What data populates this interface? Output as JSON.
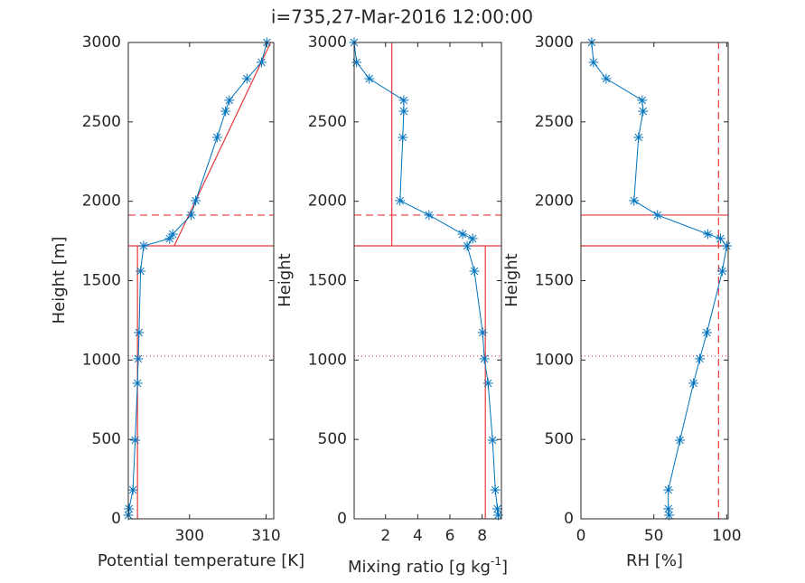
{
  "title": "i=735,27-Mar-2016 12:00:00",
  "chart_data": [
    {
      "type": "line",
      "xlabel": [
        "Potential temperature [K]"
      ],
      "ylabel": "Height [m]",
      "xlim": [
        292,
        311
      ],
      "ylim": [
        0,
        3000
      ],
      "xticks": [
        300,
        310
      ],
      "yticks": [
        0,
        500,
        1000,
        1500,
        2000,
        2500,
        3000
      ],
      "series": [
        {
          "color": "#0072bd",
          "x": [
            292.0,
            292.1,
            292.6,
            292.9,
            293.2,
            293.3,
            293.4,
            293.6,
            294.0,
            297.4,
            297.8,
            300.2,
            300.8,
            303.6,
            304.7,
            305.2,
            307.5,
            309.4,
            310.1
          ],
          "values": [
            23,
            63,
            182,
            495,
            854,
            1008,
            1173,
            1560,
            1719,
            1765,
            1793,
            1913,
            2004,
            2402,
            2567,
            2636,
            2772,
            2875,
            3000
          ]
        }
      ],
      "ref_lines": [
        {
          "y": 1719,
          "dash": "solid",
          "color": "#e8373a"
        },
        {
          "y": 1913,
          "dash": "dashed",
          "color": "#e8373a"
        },
        {
          "y": 1025,
          "dash": "dotted",
          "color": "#e8373a"
        },
        {
          "x": 293.2,
          "y": [
            0,
            1719
          ],
          "dash": "solid",
          "color": "#e8373a"
        },
        {
          "x": [
            298,
            310.6
          ],
          "y": [
            1719,
            3000
          ],
          "dash": "solid",
          "color": "#e8373a"
        }
      ]
    },
    {
      "type": "line",
      "xlabel": [
        "Mixing ratio [g kg",
        "-1",
        "]"
      ],
      "ylabel": "Height",
      "xlim": [
        0.05,
        9.2
      ],
      "ylim": [
        0,
        3000
      ],
      "xticks": [
        2,
        4,
        6,
        8
      ],
      "yticks": [
        0,
        500,
        1000,
        1500,
        2000,
        2500,
        3000
      ],
      "series": [
        {
          "color": "#0072bd",
          "x": [
            9.0,
            8.95,
            8.82,
            8.65,
            8.37,
            8.14,
            8.03,
            7.52,
            7.07,
            7.41,
            6.79,
            4.7,
            2.9,
            3.07,
            3.13,
            3.13,
            0.99,
            0.2,
            0.05
          ],
          "values": [
            23,
            63,
            182,
            495,
            854,
            1008,
            1173,
            1560,
            1719,
            1765,
            1793,
            1913,
            2004,
            2402,
            2567,
            2636,
            2772,
            2875,
            3000
          ]
        }
      ],
      "ref_lines": [
        {
          "y": 1719,
          "dash": "solid",
          "color": "#e8373a"
        },
        {
          "y": 1913,
          "dash": "dashed",
          "color": "#e8373a"
        },
        {
          "y": 1025,
          "dash": "dotted",
          "color": "#e8373a"
        },
        {
          "x": 8.2,
          "y": [
            0,
            1719
          ],
          "dash": "solid",
          "color": "#e8373a"
        },
        {
          "x": 2.39,
          "y": [
            1719,
            3000
          ],
          "dash": "solid",
          "color": "#e8373a"
        }
      ]
    },
    {
      "type": "line",
      "xlabel": [
        "RH [%]"
      ],
      "ylabel": "Height",
      "xlim": [
        0,
        101
      ],
      "ylim": [
        0,
        3000
      ],
      "xticks": [
        0,
        50,
        100
      ],
      "yticks": [
        0,
        500,
        1000,
        1500,
        2000,
        2500,
        3000
      ],
      "series": [
        {
          "color": "#0072bd",
          "x": [
            60.5,
            59.9,
            59.9,
            67.9,
            77.2,
            81.5,
            86.4,
            96.9,
            100,
            95.7,
            87.0,
            52.5,
            36.4,
            39.5,
            42.6,
            42.0,
            17.3,
            8.6,
            7.4
          ],
          "values": [
            23,
            63,
            182,
            495,
            854,
            1008,
            1173,
            1560,
            1719,
            1765,
            1793,
            1913,
            2004,
            2402,
            2567,
            2636,
            2772,
            2875,
            3000
          ]
        }
      ],
      "ref_lines": [
        {
          "y": 1719,
          "dash": "solid",
          "color": "#e8373a"
        },
        {
          "y": 1913,
          "dash": "solid",
          "color": "#e8373a"
        },
        {
          "y": 1025,
          "dash": "dotted",
          "color": "#e8373a"
        },
        {
          "x": 94.4,
          "dash": "dashed",
          "color": "#e8373a"
        }
      ]
    }
  ]
}
